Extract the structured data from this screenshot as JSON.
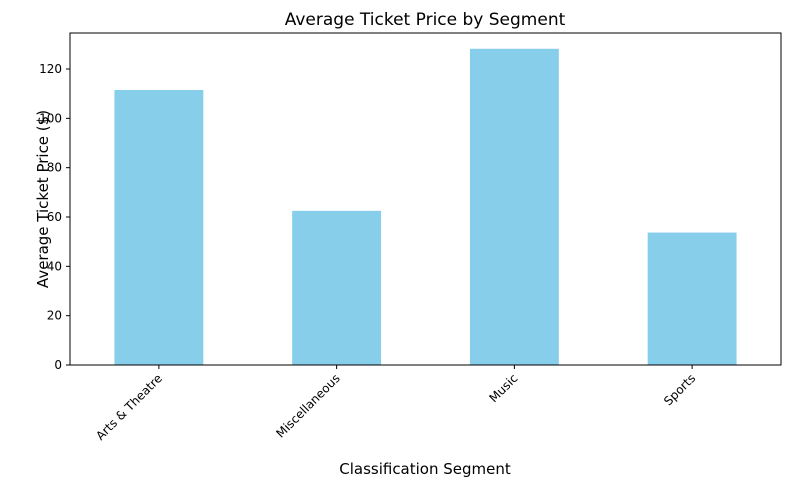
{
  "chart_data": {
    "type": "bar",
    "title": "Average Ticket Price by Segment",
    "xlabel": "Classification Segment",
    "ylabel": "Average Ticket Price ($)",
    "categories": [
      "Arts & Theatre",
      "Miscellaneous",
      "Music",
      "Sports"
    ],
    "values": [
      111.5,
      62.5,
      128.2,
      53.7
    ],
    "ylim": [
      0,
      134.6
    ],
    "yticks": [
      0,
      20,
      40,
      60,
      80,
      100,
      120
    ],
    "grid": false,
    "bar_color": "#87CEEB"
  }
}
